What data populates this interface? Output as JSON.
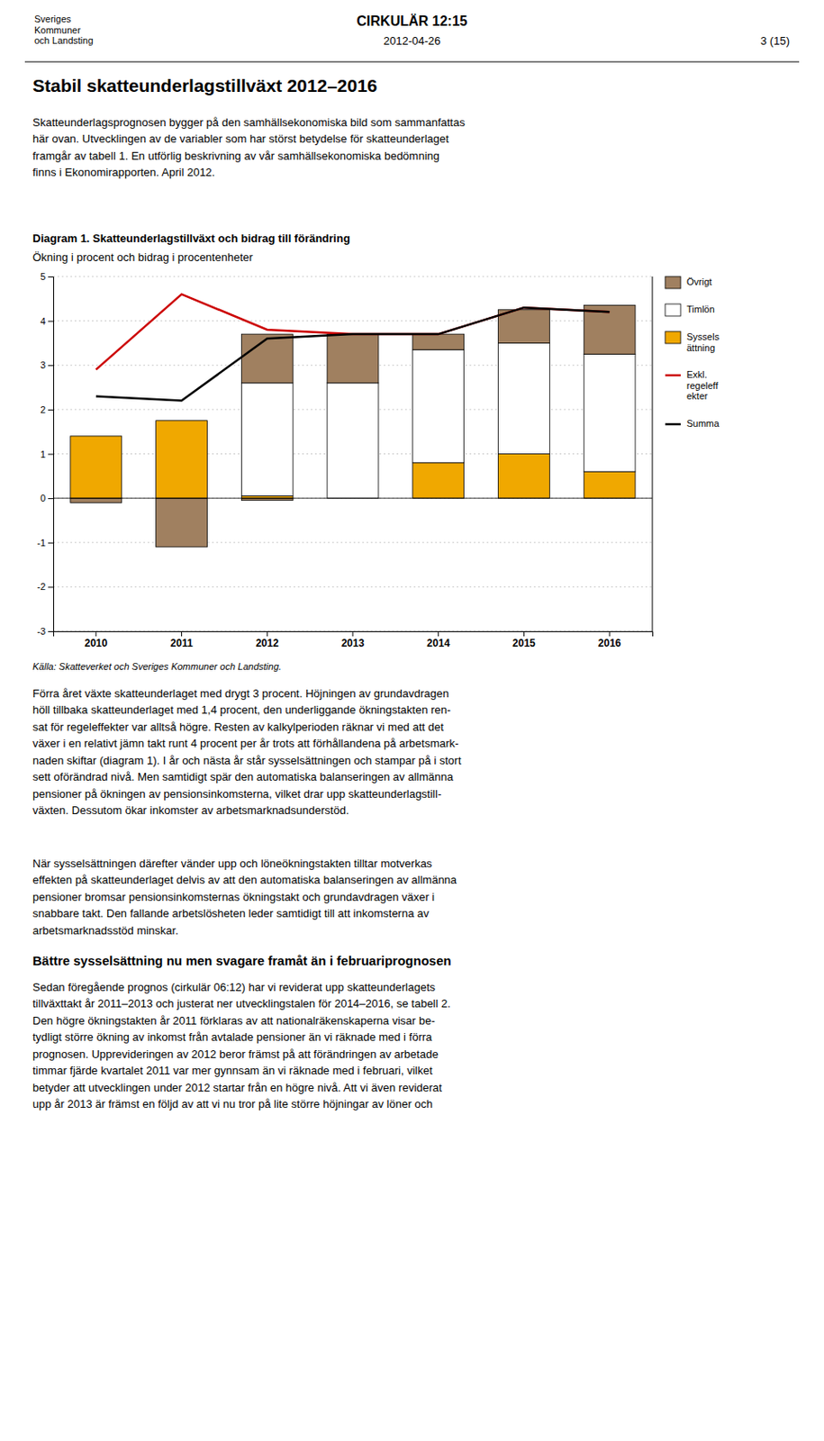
{
  "page": {
    "logo_text": "Sveriges\nKommuner\noch Landsting",
    "circular": "CIRKULÄR 12:15",
    "date": "2012-04-26",
    "page_number": "3 (15)",
    "header_title": "Stabil skatteunderlagstillväxt 2012–2016",
    "body1": "Skatteunderlagsprognosen bygger på den samhällsekonomiska bild som sammanfattas\nhär ovan. Utvecklingen av de variabler som har störst betydelse för skatteunderlaget\nframgår av tabell 1. En utförlig beskrivning av vår samhällsekonomiska bedömning\nfinns i Ekonomirapporten. April 2012.",
    "body2": "Förra året växte skatteunderlaget med drygt 3 procent. Höjningen av grundavdragen\nhöll tillbaka skatteunderlaget med 1,4 procent, den underliggande ökningstakten ren-\nsat för regeleffekter var alltså högre. Resten av kalkylperioden räknar vi med att det\nväxer i en relativt jämn takt runt 4 procent per år trots att förhållandena på arbetsmark-\nnaden skiftar (diagram 1). I år och nästa år står sysselsättningen och stampar på i stort\nsett oförändrad nivå. Men samtidigt spär den automatiska balanseringen av allmänna\npensioner på ökningen av pensionsinkomsterna, vilket drar upp skatteunderlagstill-\nväxten. Dessutom ökar inkomster av arbetsmarknadsunderstöd.",
    "body3": "När sysselsättningen därefter vänder upp och löneökningstakten tilltar motverkas\neffekten på skatteunderlaget delvis av att den automatiska balanseringen av allmänna\npensioner bromsar pensionsinkomsternas ökningstakt och grundavdragen växer i\nsnabbare takt. Den fallande arbetslösheten leder samtidigt till att inkomsterna av\narbetsmarknadsstöd minskar.",
    "section_header": "Bättre sysselsättning nu men svagare framåt än i februariprognosen",
    "body4": "Sedan föregående prognos (cirkulär 06:12) har vi reviderat upp skatteunderlagets\ntillväxttakt år 2011–2013 och justerat ner utvecklingstalen för 2014–2016, se tabell 2.\nDen högre ökningstakten år 2011 förklaras av att nationalräkenskaperna visar be-\ntydligt större ökning av inkomst från avtalade pensioner än vi räknade med i förra\nprognosen. Upprevideringen av 2012 beror främst på att förändringen av arbetade\ntimmar fjärde kvartalet 2011 var mer gynnsam än vi räknade med i februari, vilket\nbetyder att utvecklingen under 2012 startar från en högre nivå. Att vi även reviderat\nupp år 2013 är främst en följd av att vi nu tror på lite större höjningar av löner och"
  },
  "chart_data": {
    "type": "bar",
    "stacked": true,
    "title": "Diagram 1. Skatteunderlagstillväxt och bidrag till förändring",
    "subtitle": "Ökning i procent och bidrag i procentenheter",
    "source": "Källa: Skatteverket och Sveriges Kommuner och Landsting.",
    "categories": [
      "2010",
      "2011",
      "2012",
      "2013",
      "2014",
      "2015",
      "2016"
    ],
    "series": [
      {
        "name": "Övrigt",
        "type": "bar",
        "color": "#a08060",
        "values": [
          -0.1,
          -1.1,
          -0.05,
          0.0,
          0.0,
          0.0,
          0.0
        ]
      },
      {
        "name": "Syssels\nättning",
        "type": "bar",
        "color": "#f0a800",
        "values": [
          1.4,
          1.75,
          0.05,
          0.0,
          0.8,
          1.0,
          0.6
        ]
      },
      {
        "name": "Timlön",
        "type": "bar",
        "color": "#ffffff",
        "values": [
          0.0,
          0.0,
          2.55,
          2.6,
          2.55,
          2.5,
          2.65
        ]
      },
      {
        "name": "Övrigt",
        "type": "bar",
        "color": "#a08060",
        "values": [
          0.0,
          0.0,
          1.1,
          1.1,
          0.35,
          0.75,
          1.1
        ]
      },
      {
        "name": "Exkl.\nregeleff\nekter",
        "type": "line",
        "color": "#cc0000",
        "values": [
          2.9,
          4.6,
          3.8,
          3.7,
          3.7,
          4.3,
          4.2
        ]
      },
      {
        "name": "Summa",
        "type": "line",
        "color": "#000000",
        "values": [
          2.3,
          2.2,
          3.6,
          3.7,
          3.7,
          4.3,
          4.2
        ]
      }
    ],
    "ylim": [
      -3,
      5
    ],
    "yticks": [
      -3,
      -2,
      -1,
      0,
      1,
      2,
      3,
      4,
      5
    ],
    "grid": true
  }
}
